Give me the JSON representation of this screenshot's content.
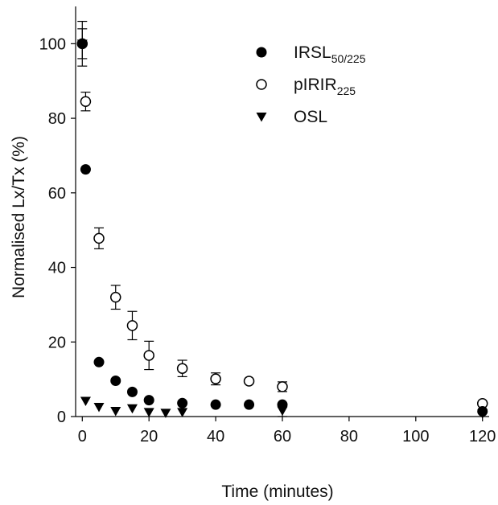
{
  "chart_data": {
    "type": "scatter",
    "xlabel": "Time (minutes)",
    "ylabel": "Normalised Lx/Tx (%)",
    "xlim": [
      -2,
      122
    ],
    "ylim": [
      0,
      110
    ],
    "x_ticks": [
      "0",
      "20",
      "40",
      "60",
      "80",
      "100",
      "120"
    ],
    "y_ticks": [
      "0",
      "20",
      "40",
      "60",
      "80",
      "100"
    ],
    "x_tick_values": [
      0,
      20,
      40,
      60,
      80,
      100,
      120
    ],
    "y_tick_values": [
      0,
      20,
      40,
      60,
      80,
      100
    ],
    "legend_position": "top-right",
    "series": [
      {
        "name": "IRSL",
        "subscript": "50/225",
        "marker": "filled-circle",
        "color": "#000000",
        "points": [
          {
            "x": 0,
            "y": 100,
            "err": 0
          },
          {
            "x": 1,
            "y": 66.3,
            "err": 0
          },
          {
            "x": 5,
            "y": 14.6,
            "err": 0
          },
          {
            "x": 10,
            "y": 9.6,
            "err": 0
          },
          {
            "x": 15,
            "y": 6.6,
            "err": 0
          },
          {
            "x": 20,
            "y": 4.4,
            "err": 0
          },
          {
            "x": 30,
            "y": 3.6,
            "err": 0
          },
          {
            "x": 40,
            "y": 3.2,
            "err": 0
          },
          {
            "x": 50,
            "y": 3.2,
            "err": 0
          },
          {
            "x": 60,
            "y": 3.2,
            "err": 0
          },
          {
            "x": 120,
            "y": 1.4,
            "err": 0
          }
        ]
      },
      {
        "name": "pIRIR",
        "subscript": "225",
        "marker": "open-circle",
        "color": "#000000",
        "points": [
          {
            "x": 0,
            "y": 100,
            "err": 4
          },
          {
            "x": 1,
            "y": 84.5,
            "err": 2.5
          },
          {
            "x": 5,
            "y": 47.8,
            "err": 2.8
          },
          {
            "x": 10,
            "y": 32.0,
            "err": 3.2
          },
          {
            "x": 15,
            "y": 24.4,
            "err": 3.8
          },
          {
            "x": 20,
            "y": 16.4,
            "err": 3.8
          },
          {
            "x": 30,
            "y": 12.9,
            "err": 2.2
          },
          {
            "x": 40,
            "y": 10.1,
            "err": 1.6
          },
          {
            "x": 50,
            "y": 9.5,
            "err": 0
          },
          {
            "x": 60,
            "y": 8.0,
            "err": 1.3
          },
          {
            "x": 120,
            "y": 3.5,
            "err": 0
          }
        ]
      },
      {
        "name": "OSL",
        "subscript": "",
        "marker": "filled-triangle-down",
        "color": "#000000",
        "points": [
          {
            "x": 0,
            "y": 100,
            "err": 6
          },
          {
            "x": 1,
            "y": 4.2,
            "err": 0
          },
          {
            "x": 5,
            "y": 2.6,
            "err": 0
          },
          {
            "x": 10,
            "y": 1.5,
            "err": 0
          },
          {
            "x": 15,
            "y": 2.2,
            "err": 0
          },
          {
            "x": 20,
            "y": 1.2,
            "err": 0
          },
          {
            "x": 25,
            "y": 1.0,
            "err": 0
          },
          {
            "x": 30,
            "y": 1.2,
            "err": 0
          },
          {
            "x": 60,
            "y": 1.6,
            "err": 1.6
          },
          {
            "x": 120,
            "y": 0.8,
            "err": 0
          }
        ]
      }
    ]
  }
}
